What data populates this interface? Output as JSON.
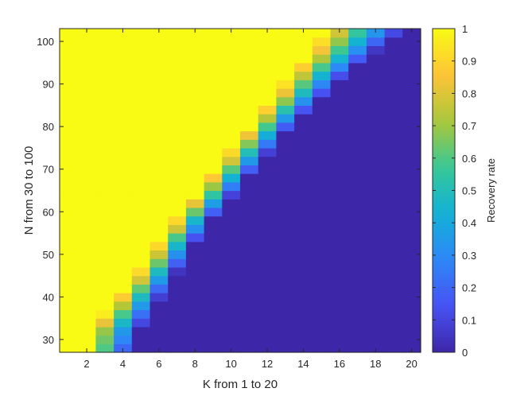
{
  "chart_data": {
    "type": "heatmap",
    "xlabel": "K from 1 to 20",
    "ylabel": "N from 30 to 100",
    "x": [
      1,
      2,
      3,
      4,
      5,
      6,
      7,
      8,
      9,
      10,
      11,
      12,
      13,
      14,
      15,
      16,
      17,
      18,
      19,
      20
    ],
    "y": [
      28,
      30,
      32,
      34,
      36,
      38,
      40,
      42,
      44,
      46,
      48,
      50,
      52,
      54,
      56,
      58,
      60,
      62,
      64,
      66,
      68,
      70,
      72,
      74,
      76,
      78,
      80,
      82,
      84,
      86,
      88,
      90,
      92,
      94,
      96,
      98,
      100,
      102
    ],
    "x_ticks": [
      2,
      4,
      6,
      8,
      10,
      12,
      14,
      16,
      18,
      20
    ],
    "y_ticks": [
      30,
      40,
      50,
      60,
      70,
      80,
      90,
      100
    ],
    "xlim": [
      0.5,
      20.5
    ],
    "ylim": [
      27,
      103
    ],
    "grid": false,
    "colormap": "parula",
    "colorbar": {
      "label": "Recovery rate",
      "range": [
        0,
        1
      ],
      "ticks": [
        0,
        0.1,
        0.2,
        0.3,
        0.4,
        0.5,
        0.6,
        0.7,
        0.8,
        0.9,
        1
      ],
      "tick_labels": [
        "0",
        "0.1",
        "0.2",
        "0.3",
        "0.4",
        "0.5",
        "0.6",
        "0.7",
        "0.8",
        "0.9",
        "1"
      ]
    },
    "transition_boundary": {
      "description": "recovery rate by K: 1 for K <= start, linearly decreasing to 0 at K = end",
      "N": [
        28,
        30,
        32,
        34,
        36,
        38,
        40,
        42,
        44,
        46,
        48,
        50,
        52,
        54,
        56,
        58,
        60,
        62,
        64,
        66,
        68,
        70,
        72,
        74,
        76,
        78,
        80,
        82,
        84,
        86,
        88,
        90,
        92,
        94,
        96,
        98,
        100,
        102
      ],
      "start": [
        2,
        2,
        2.1,
        2.5,
        2.9,
        3.3,
        3.7,
        4.1,
        4.5,
        4.8,
        5.2,
        5.5,
        5.8,
        6.1,
        6.5,
        6.8,
        7.2,
        7.6,
        8,
        8.3,
        8.7,
        9.1,
        9.5,
        9.8,
        10.2,
        10.6,
        11,
        11.3,
        11.7,
        12.1,
        12.5,
        12.8,
        13.2,
        13.6,
        14,
        14.4,
        14.7,
        15
      ],
      "end": [
        4.5,
        4.8,
        5,
        5.3,
        5.6,
        5.9,
        6.2,
        6.5,
        6.8,
        7.1,
        7.4,
        7.7,
        8,
        8.3,
        8.7,
        9,
        9.4,
        9.8,
        10.2,
        10.6,
        11,
        11.4,
        11.8,
        12.2,
        12.6,
        13,
        13.4,
        13.9,
        14.4,
        14.9,
        15.4,
        15.9,
        16.4,
        17,
        17.6,
        18.2,
        18.8,
        19.5
      ]
    }
  }
}
